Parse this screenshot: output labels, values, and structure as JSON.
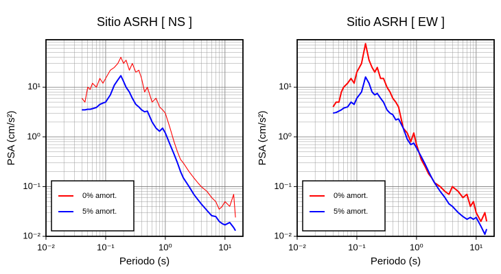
{
  "chart_data": [
    {
      "type": "line",
      "title": "Sitio ASRH [ NS ]",
      "xlabel": "Periodo (s)",
      "ylabel": "PSA (cm/s²)",
      "xscale": "log",
      "yscale": "log",
      "grid": true,
      "legend": "lower left",
      "xlim": [
        0.01,
        20
      ],
      "ylim": [
        0.01,
        90
      ],
      "xticks": [
        {
          "value": 0.01,
          "label": "10⁻²"
        },
        {
          "value": 0.1,
          "label": "10⁻¹"
        },
        {
          "value": 1,
          "label": "10⁰"
        },
        {
          "value": 10,
          "label": "10¹"
        }
      ],
      "yticks": [
        {
          "value": 0.01,
          "label": "10⁻²"
        },
        {
          "value": 0.1,
          "label": "10⁻¹"
        },
        {
          "value": 1,
          "label": "10⁰"
        },
        {
          "value": 10,
          "label": "10¹"
        }
      ],
      "x": [
        0.04,
        0.045,
        0.05,
        0.055,
        0.06,
        0.07,
        0.08,
        0.09,
        0.1,
        0.12,
        0.14,
        0.16,
        0.18,
        0.2,
        0.22,
        0.25,
        0.28,
        0.32,
        0.36,
        0.4,
        0.45,
        0.5,
        0.6,
        0.7,
        0.8,
        0.9,
        1.0,
        1.2,
        1.4,
        1.6,
        1.8,
        2.0,
        2.5,
        3,
        3.5,
        4,
        5,
        6,
        7,
        8,
        9,
        10,
        12,
        14,
        15
      ],
      "series": [
        {
          "name": "0% amort.",
          "color": "#ff0000",
          "values": [
            6,
            5,
            10,
            9,
            12,
            10,
            15,
            12,
            15,
            22,
            25,
            30,
            40,
            30,
            35,
            22,
            30,
            20,
            22,
            15,
            8,
            10,
            5,
            6,
            4,
            3.5,
            3,
            1.5,
            0.8,
            0.5,
            0.35,
            0.3,
            0.2,
            0.15,
            0.12,
            0.1,
            0.08,
            0.06,
            0.05,
            0.035,
            0.04,
            0.05,
            0.04,
            0.07,
            0.024
          ]
        },
        {
          "name": "5% amort.",
          "color": "#0000ff",
          "values": [
            3.5,
            3.5,
            3.6,
            3.6,
            3.7,
            3.9,
            4.5,
            4.8,
            5,
            7,
            11,
            14,
            17,
            13,
            10,
            8,
            6,
            4.5,
            4,
            3.5,
            3.2,
            3.3,
            2,
            1.5,
            1.3,
            1.5,
            1.2,
            0.7,
            0.45,
            0.3,
            0.2,
            0.15,
            0.1,
            0.07,
            0.055,
            0.045,
            0.033,
            0.026,
            0.025,
            0.02,
            0.018,
            0.017,
            0.019,
            0.015,
            0.013
          ]
        }
      ]
    },
    {
      "type": "line",
      "title": "Sitio ASRH [ EW ]",
      "xlabel": "Periodo (s)",
      "ylabel": "PSA (cm/s²)",
      "xscale": "log",
      "yscale": "log",
      "grid": true,
      "legend": "lower left",
      "xlim": [
        0.01,
        20
      ],
      "ylim": [
        0.01,
        90
      ],
      "xticks": [
        {
          "value": 0.01,
          "label": "10⁻²"
        },
        {
          "value": 0.1,
          "label": "10⁻¹"
        },
        {
          "value": 1,
          "label": "10⁰"
        },
        {
          "value": 10,
          "label": "10¹"
        }
      ],
      "yticks": [
        {
          "value": 0.01,
          "label": "10⁻²"
        },
        {
          "value": 0.1,
          "label": "10⁻¹"
        },
        {
          "value": 1,
          "label": "10⁰"
        },
        {
          "value": 10,
          "label": "10¹"
        }
      ],
      "x": [
        0.04,
        0.045,
        0.05,
        0.055,
        0.06,
        0.07,
        0.08,
        0.09,
        0.1,
        0.12,
        0.14,
        0.16,
        0.18,
        0.2,
        0.22,
        0.25,
        0.28,
        0.32,
        0.36,
        0.4,
        0.45,
        0.5,
        0.6,
        0.7,
        0.8,
        0.9,
        1.0,
        1.2,
        1.4,
        1.6,
        1.8,
        2.0,
        2.5,
        3,
        3.5,
        4,
        5,
        6,
        7,
        8,
        9,
        10,
        12,
        14,
        15
      ],
      "series": [
        {
          "name": "0% amort.",
          "color": "#ff0000",
          "values": [
            4,
            5,
            5,
            8,
            10,
            12,
            15,
            12,
            20,
            30,
            75,
            35,
            25,
            20,
            25,
            15,
            15,
            10,
            8,
            6,
            5,
            4,
            1.5,
            1.2,
            0.8,
            1.2,
            0.7,
            0.35,
            0.25,
            0.18,
            0.15,
            0.12,
            0.1,
            0.08,
            0.07,
            0.1,
            0.08,
            0.06,
            0.07,
            0.04,
            0.05,
            0.03,
            0.02,
            0.03,
            0.02
          ]
        },
        {
          "name": "5% amort.",
          "color": "#0000ff",
          "values": [
            3,
            3.1,
            3.3,
            3.5,
            3.8,
            4,
            5,
            4.5,
            6,
            8,
            16,
            12,
            8,
            7,
            7.5,
            6,
            5,
            3.5,
            3,
            2.8,
            2.2,
            2.3,
            1.5,
            0.9,
            0.7,
            0.75,
            0.6,
            0.4,
            0.28,
            0.2,
            0.15,
            0.12,
            0.08,
            0.06,
            0.045,
            0.04,
            0.03,
            0.025,
            0.022,
            0.024,
            0.022,
            0.024,
            0.016,
            0.011,
            0.014
          ]
        }
      ]
    }
  ]
}
